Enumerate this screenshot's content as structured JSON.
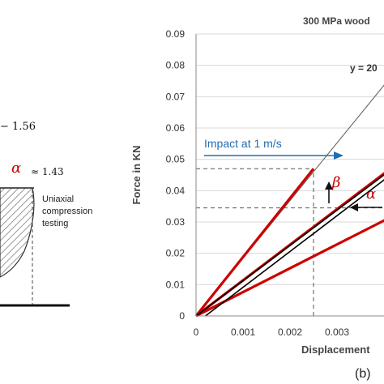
{
  "left_panel": {
    "value_top": "− 1.56",
    "alpha_symbol": "α",
    "approx_value": "≈ 1.43",
    "label_line1": "Uniaxial",
    "label_line2": "compression",
    "label_line3": "testing"
  },
  "chart_data": {
    "type": "line",
    "title": "300 MPa wood",
    "xlabel": "Displacement",
    "ylabel": "Force in KN",
    "xlim": [
      0,
      0.004
    ],
    "ylim": [
      0,
      0.09
    ],
    "xticks": [
      "0",
      "0.001",
      "0.002",
      "0.003"
    ],
    "yticks": [
      "0",
      "0.01",
      "0.02",
      "0.03",
      "0.04",
      "0.05",
      "0.06",
      "0.07",
      "0.08",
      "0.09"
    ],
    "equation_label": "y = 20",
    "grid": true,
    "series": [
      {
        "color": "#666666",
        "x": [
          0.0,
          0.0044
        ],
        "y": [
          0.0,
          0.081
        ]
      },
      {
        "color": "#cc0000",
        "x": [
          0.0,
          0.0025
        ],
        "y": [
          0.0,
          0.047
        ]
      },
      {
        "color": "#cc0000",
        "x": [
          0.0,
          0.0044
        ],
        "y": [
          0.0,
          0.05
        ]
      },
      {
        "color": "#cc0000",
        "x": [
          0.0,
          0.0044
        ],
        "y": [
          0.0,
          0.0335
        ]
      },
      {
        "color": "#000000",
        "x": [
          0.0,
          0.0044
        ],
        "y": [
          0.0,
          0.0495
        ]
      },
      {
        "color": "#000000",
        "x": [
          0.0002,
          0.0044
        ],
        "y": [
          0.0,
          0.048
        ]
      }
    ],
    "reference_lines": [
      {
        "type": "horizontal",
        "y": 0.047,
        "x_to": 0.0025
      },
      {
        "type": "horizontal",
        "y": 0.0345,
        "x_to": 0.0044
      },
      {
        "type": "vertical",
        "x": 0.0025,
        "y_to": 0.047
      }
    ],
    "annotations": {
      "impact_text": "Impact at 1 m/s",
      "impact_color": "#1f6db3",
      "beta": "β",
      "alpha": "α",
      "symbol_color": "#cc0000"
    },
    "panel_label": "(b)"
  }
}
